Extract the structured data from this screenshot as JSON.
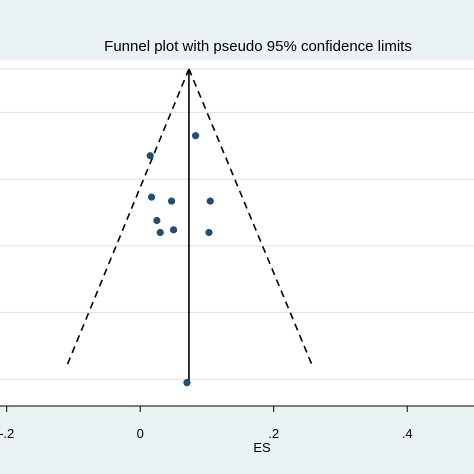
{
  "chart_data": {
    "type": "scatter",
    "title": "Funnel plot with pseudo 95% confidence limits",
    "xlabel": "ES",
    "ylabel": "",
    "x_ticks": [
      {
        "value": -0.2,
        "label": "-.2"
      },
      {
        "value": 0,
        "label": "0"
      },
      {
        "value": 0.2,
        "label": ".2"
      },
      {
        "value": 0.4,
        "label": ".4"
      }
    ],
    "xlim": [
      -0.21,
      0.5
    ],
    "ylim": [
      0.54,
      0.035
    ],
    "y_gridlines": [
      0.5,
      0.4,
      0.3,
      0.2,
      0.1
    ],
    "grid": true,
    "pooled_effect": 0.073,
    "funnel": {
      "apex": {
        "x": 0.073,
        "y": 0.035
      },
      "base_left": {
        "x": -0.11,
        "y": 0.48
      },
      "base_right": {
        "x": 0.258,
        "y": 0.48
      },
      "line_style": "dashed"
    },
    "points": [
      {
        "x": 0.083,
        "y": 0.135
      },
      {
        "x": 0.015,
        "y": 0.165
      },
      {
        "x": 0.017,
        "y": 0.227
      },
      {
        "x": 0.047,
        "y": 0.233
      },
      {
        "x": 0.105,
        "y": 0.233
      },
      {
        "x": 0.025,
        "y": 0.262
      },
      {
        "x": 0.03,
        "y": 0.28
      },
      {
        "x": 0.05,
        "y": 0.276
      },
      {
        "x": 0.103,
        "y": 0.28
      },
      {
        "x": 0.07,
        "y": 0.505
      }
    ],
    "colors": {
      "point": "#1f4e79",
      "line": "#000000",
      "grid": "#d8e2ea",
      "header_band": "#eaf2f3",
      "outer_bg": "#eaf2f3",
      "plot_bg": "#ffffff"
    }
  }
}
